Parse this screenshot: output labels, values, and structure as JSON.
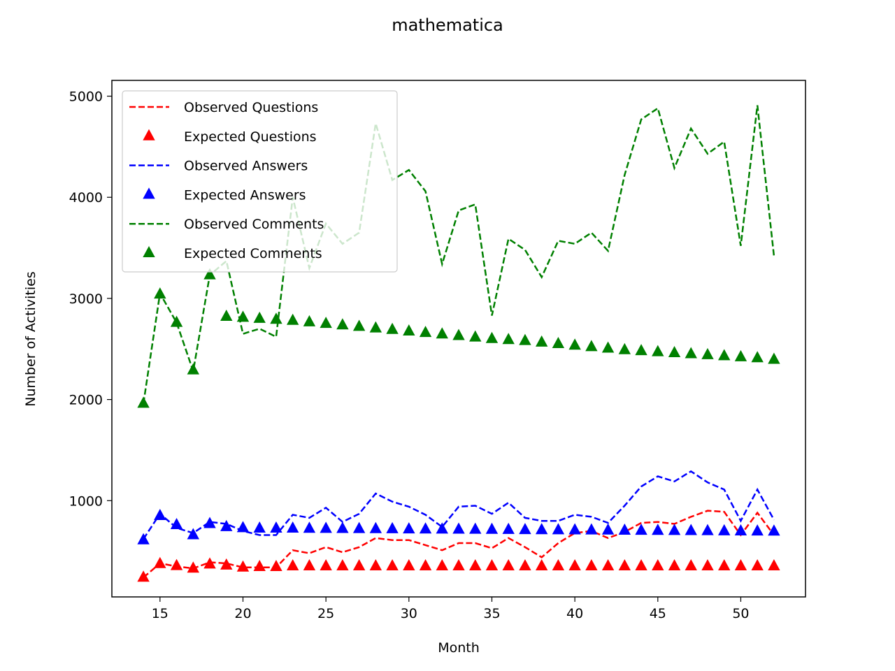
{
  "chart_data": {
    "type": "line",
    "title": "mathematica",
    "xlabel": "Month",
    "ylabel": "Number of Activities",
    "xlim": [
      12.1,
      53.9
    ],
    "ylim": [
      48,
      5156
    ],
    "xticks": [
      15,
      20,
      25,
      30,
      35,
      40,
      45,
      50
    ],
    "yticks": [
      1000,
      2000,
      3000,
      4000,
      5000
    ],
    "grid": false,
    "legend_position": "top-left",
    "x": [
      14,
      15,
      16,
      17,
      18,
      19,
      20,
      21,
      22,
      23,
      24,
      25,
      26,
      27,
      28,
      29,
      30,
      31,
      32,
      33,
      34,
      35,
      36,
      37,
      38,
      39,
      40,
      41,
      42,
      43,
      44,
      45,
      46,
      47,
      48,
      49,
      50,
      51,
      52
    ],
    "series": [
      {
        "name": "Observed Questions",
        "style": "dashed",
        "color": "#ff0000",
        "values": [
          240,
          380,
          350,
          330,
          390,
          380,
          340,
          340,
          340,
          510,
          480,
          540,
          490,
          540,
          630,
          610,
          610,
          560,
          510,
          580,
          580,
          530,
          630,
          540,
          440,
          580,
          680,
          700,
          630,
          690,
          780,
          790,
          770,
          840,
          900,
          890,
          660,
          880,
          660
        ]
      },
      {
        "name": "Expected Questions",
        "style": "triangle",
        "color": "#ff0000",
        "values": [
          240,
          375,
          355,
          330,
          370,
          360,
          340,
          345,
          345,
          352,
          352,
          352,
          352,
          352,
          352,
          352,
          352,
          352,
          352,
          352,
          352,
          352,
          352,
          352,
          352,
          352,
          352,
          352,
          352,
          352,
          352,
          352,
          352,
          352,
          352,
          352,
          352,
          352,
          352
        ]
      },
      {
        "name": "Observed Answers",
        "style": "dashed",
        "color": "#0000ff",
        "values": [
          620,
          870,
          730,
          680,
          790,
          770,
          700,
          660,
          660,
          860,
          830,
          930,
          790,
          870,
          1070,
          990,
          940,
          860,
          740,
          940,
          950,
          870,
          980,
          830,
          800,
          800,
          860,
          840,
          780,
          950,
          1140,
          1240,
          1190,
          1290,
          1180,
          1110,
          800,
          1110,
          810
        ]
      },
      {
        "name": "Expected Answers",
        "style": "triangle",
        "color": "#0000ff",
        "values": [
          610,
          850,
          760,
          660,
          770,
          740,
          730,
          725,
          725,
          725,
          724,
          723,
          722,
          721,
          720,
          719,
          718,
          717,
          716,
          715,
          714,
          713,
          712,
          711,
          710,
          709,
          708,
          707,
          706,
          705,
          704,
          703,
          702,
          701,
          700,
          699,
          698,
          697,
          696
        ]
      },
      {
        "name": "Observed Comments",
        "style": "dashed",
        "color": "#008000",
        "values": [
          1960,
          3050,
          2760,
          2280,
          3230,
          3370,
          2650,
          2700,
          2620,
          4000,
          3300,
          3740,
          3540,
          3650,
          4730,
          4170,
          4270,
          4060,
          3340,
          3870,
          3930,
          2830,
          3590,
          3480,
          3210,
          3570,
          3540,
          3650,
          3470,
          4220,
          4770,
          4880,
          4290,
          4680,
          4430,
          4550,
          3520,
          4910,
          3420
        ]
      },
      {
        "name": "Expected Comments",
        "style": "triangle",
        "color": "#008000",
        "values": [
          1960,
          3040,
          2760,
          2290,
          3230,
          2820,
          2810,
          2800,
          2790,
          2780,
          2765,
          2750,
          2735,
          2720,
          2705,
          2690,
          2675,
          2660,
          2645,
          2630,
          2615,
          2600,
          2590,
          2580,
          2565,
          2550,
          2535,
          2520,
          2505,
          2490,
          2480,
          2470,
          2460,
          2450,
          2440,
          2430,
          2420,
          2410,
          2395
        ]
      }
    ]
  }
}
